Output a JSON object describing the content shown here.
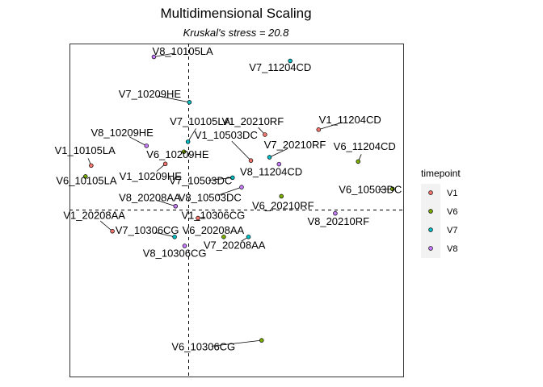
{
  "chart_data": {
    "type": "scatter",
    "title": "Multidimensional Scaling",
    "subtitle": "Kruskal's stress = 20.8",
    "xlabel": "",
    "ylabel": "",
    "xlim": [
      -0.5,
      0.9
    ],
    "ylim": [
      -0.7,
      0.7
    ],
    "grid": false,
    "reference_lines": {
      "x": 0,
      "y": 0,
      "style": "dashed"
    },
    "legend": {
      "title": "timepoint",
      "placement": "right",
      "entries": [
        {
          "name": "V1",
          "color": "#F8766D"
        },
        {
          "name": "V6",
          "color": "#7CAE00"
        },
        {
          "name": "V7",
          "color": "#00BFC4"
        },
        {
          "name": "V8",
          "color": "#C77CFF"
        }
      ]
    },
    "points": [
      {
        "label": "V8_10105LA",
        "timepoint": "V8",
        "x": -0.146,
        "y": 0.644,
        "lx": -0.025,
        "ly": 0.652
      },
      {
        "label": "V7_11204CD",
        "timepoint": "V7",
        "x": 0.426,
        "y": 0.627,
        "lx": 0.384,
        "ly": 0.584
      },
      {
        "label": "V7_10209HE",
        "timepoint": "V7",
        "x": 0.003,
        "y": 0.453,
        "lx": -0.163,
        "ly": 0.473
      },
      {
        "label": "V7_10105LA",
        "timepoint": "V7",
        "x": -0.003,
        "y": 0.287,
        "lx": 0.048,
        "ly": 0.358
      },
      {
        "label": "V1_20210RF",
        "timepoint": "V1",
        "x": 0.32,
        "y": 0.317,
        "lx": 0.269,
        "ly": 0.358
      },
      {
        "label": "V1_11204CD",
        "timepoint": "V1",
        "x": 0.545,
        "y": 0.338,
        "lx": 0.677,
        "ly": 0.365
      },
      {
        "label": "V8_10209HE",
        "timepoint": "V8",
        "x": -0.177,
        "y": 0.27,
        "lx": -0.279,
        "ly": 0.31
      },
      {
        "label": "V1_10503DC",
        "timepoint": "V1",
        "x": 0.261,
        "y": 0.208,
        "lx": 0.157,
        "ly": 0.3
      },
      {
        "label": "V7_20210RF",
        "timepoint": "V7",
        "x": 0.339,
        "y": 0.222,
        "lx": 0.446,
        "ly": 0.259
      },
      {
        "label": "V6_11204CD",
        "timepoint": "V6",
        "x": 0.711,
        "y": 0.204,
        "lx": 0.738,
        "ly": 0.252
      },
      {
        "label": "V1_10105LA",
        "timepoint": "V1",
        "x": -0.409,
        "y": 0.187,
        "lx": -0.435,
        "ly": 0.235
      },
      {
        "label": "V6_10209HE",
        "timepoint": "V6",
        "x": -0.02,
        "y": 0.245,
        "lx": -0.046,
        "ly": 0.218
      },
      {
        "label": "V8_11204CD",
        "timepoint": "V8",
        "x": 0.379,
        "y": 0.193,
        "lx": 0.346,
        "ly": 0.146
      },
      {
        "label": "V6_10105LA",
        "timepoint": "V6",
        "x": -0.433,
        "y": 0.141,
        "lx": -0.429,
        "ly": 0.108
      },
      {
        "label": "V1_10209HE",
        "timepoint": "V1",
        "x": -0.098,
        "y": 0.194,
        "lx": -0.16,
        "ly": 0.127
      },
      {
        "label": "V7_10503DC",
        "timepoint": "V7",
        "x": 0.184,
        "y": 0.136,
        "lx": 0.05,
        "ly": 0.108
      },
      {
        "label": "V8_10503DC",
        "timepoint": "V8",
        "x": 0.222,
        "y": 0.096,
        "lx": 0.089,
        "ly": 0.037
      },
      {
        "label": "V6_10503DC",
        "timepoint": "V6",
        "x": 0.855,
        "y": 0.089,
        "lx": 0.762,
        "ly": 0.071
      },
      {
        "label": "V8_20208AA",
        "timepoint": "V8",
        "x": -0.055,
        "y": 0.016,
        "lx": -0.163,
        "ly": 0.037
      },
      {
        "label": "V6_20210RF",
        "timepoint": "V6",
        "x": 0.389,
        "y": 0.058,
        "lx": 0.396,
        "ly": 0.003
      },
      {
        "label": "V8_20210RF",
        "timepoint": "V8",
        "x": 0.615,
        "y": -0.014,
        "lx": 0.628,
        "ly": -0.062
      },
      {
        "label": "V1_20208AA",
        "timepoint": "V1",
        "x": -0.32,
        "y": -0.089,
        "lx": -0.396,
        "ly": -0.038
      },
      {
        "label": "V1_10306CG",
        "timepoint": "V1",
        "x": 0.039,
        "y": -0.034,
        "lx": 0.103,
        "ly": -0.038
      },
      {
        "label": "V7_10306CG",
        "timepoint": "V7",
        "x": -0.059,
        "y": -0.113,
        "lx": -0.174,
        "ly": -0.1
      },
      {
        "label": "V6_20208AA",
        "timepoint": "V6",
        "x": 0.147,
        "y": -0.113,
        "lx": 0.103,
        "ly": -0.1
      },
      {
        "label": "V7_20208AA",
        "timepoint": "V7",
        "x": 0.251,
        "y": -0.113,
        "lx": 0.192,
        "ly": -0.162
      },
      {
        "label": "V8_10306CG",
        "timepoint": "V8",
        "x": -0.017,
        "y": -0.151,
        "lx": -0.059,
        "ly": -0.196
      },
      {
        "label": "V6_10306CG",
        "timepoint": "V6",
        "x": 0.306,
        "y": -0.548,
        "lx": 0.062,
        "ly": -0.59
      }
    ]
  }
}
